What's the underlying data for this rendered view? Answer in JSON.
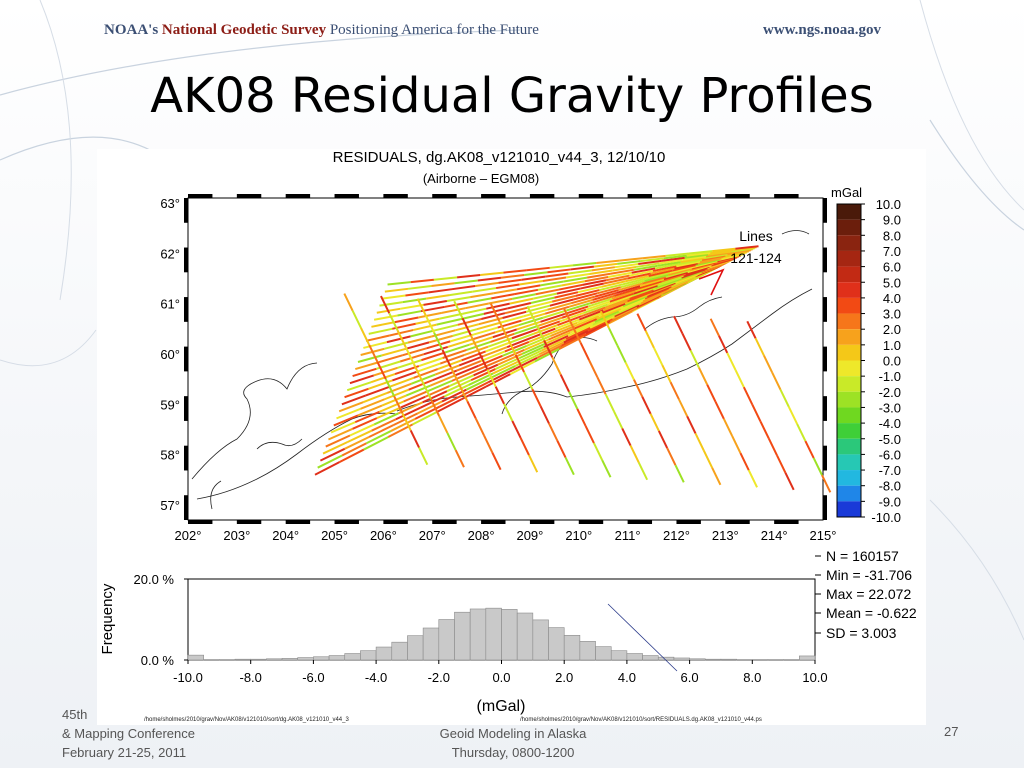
{
  "header": {
    "org": "NOAA's",
    "agency": "National Geodetic Survey",
    "tagline": "Positioning America for the Future",
    "url": "www.ngs.noaa.gov"
  },
  "slide": {
    "title": "AK08 Residual Gravity Profiles",
    "page_number": "27"
  },
  "footer": {
    "left_line1": "45th",
    "left_line2": "& Mapping Conference",
    "left_line3": "February 21-25, 2011",
    "center_line1": "Geoid Modeling in Alaska",
    "center_line2": "Thursday, 0800-1200"
  },
  "figure": {
    "path_left": "/home/sholmes/2010/grav/Nov/AK08/v121010/sort/dg.AK08_v121010_v44_3",
    "path_right": "/home/sholmes/2010/grav/Nov/AK08/v121010/sort/RESIDUALS.dg.AK08_v121010_v44.ps"
  },
  "chart_data": [
    {
      "type": "map",
      "title": "RESIDUALS, dg.AK08_v121010_v44_3, 12/10/10",
      "subtitle": "(Airborne – EGM08)",
      "xlabel": "",
      "ylabel": "",
      "x_ticks": [
        "202°",
        "203°",
        "204°",
        "205°",
        "206°",
        "207°",
        "208°",
        "209°",
        "210°",
        "211°",
        "212°",
        "213°",
        "214°",
        "215°"
      ],
      "y_ticks": [
        "57°",
        "58°",
        "59°",
        "60°",
        "61°",
        "62°",
        "63°"
      ],
      "xlim": [
        202,
        215
      ],
      "ylim": [
        56.7,
        63.1
      ],
      "annotation": "Lines\n121-124",
      "annotation_lines": [
        "Lines",
        "121-124"
      ],
      "colorbar": {
        "unit": "mGal",
        "labels": [
          "10.0",
          "9.0",
          "8.0",
          "7.0",
          "6.0",
          "5.0",
          "4.0",
          "3.0",
          "2.0",
          "1.0",
          "0.0",
          "-1.0",
          "-2.0",
          "-3.0",
          "-4.0",
          "-5.0",
          "-6.0",
          "-7.0",
          "-8.0",
          "-9.0",
          "-10.0"
        ],
        "colors": [
          "#4a1a0a",
          "#6b1e0c",
          "#8a2410",
          "#a52612",
          "#c22a14",
          "#e0301a",
          "#f24a14",
          "#f6761a",
          "#f7a21c",
          "#f4c818",
          "#eee82a",
          "#c9ea28",
          "#9de225",
          "#6fd820",
          "#3fcf38",
          "#2bc87a",
          "#26c8b4",
          "#22b8e0",
          "#1f86e8",
          "#1a3ad8"
        ]
      }
    },
    {
      "type": "bar",
      "title": "",
      "xlabel": "(mGal)",
      "ylabel": "Frequency",
      "x_ticks": [
        "-10.0",
        "-8.0",
        "-6.0",
        "-4.0",
        "-2.0",
        "0.0",
        "2.0",
        "4.0",
        "6.0",
        "8.0",
        "10.0"
      ],
      "y_ticks": [
        "0.0 %",
        "20.0 %"
      ],
      "xlim": [
        -10,
        10
      ],
      "ylim": [
        0,
        20
      ],
      "bin_width": 0.5,
      "bins": [
        -10.0,
        -9.5,
        -9.0,
        -8.5,
        -8.0,
        -7.5,
        -7.0,
        -6.5,
        -6.0,
        -5.5,
        -5.0,
        -4.5,
        -4.0,
        -3.5,
        -3.0,
        -2.5,
        -2.0,
        -1.5,
        -1.0,
        -0.5,
        0.0,
        0.5,
        1.0,
        1.5,
        2.0,
        2.5,
        3.0,
        3.5,
        4.0,
        4.5,
        5.0,
        5.5,
        6.0,
        6.5,
        7.0,
        7.5,
        8.0,
        8.5,
        9.0,
        9.5
      ],
      "values": [
        1.2,
        0.1,
        0.1,
        0.2,
        0.2,
        0.3,
        0.4,
        0.6,
        0.8,
        1.1,
        1.6,
        2.3,
        3.2,
        4.4,
        6.0,
        7.9,
        10.0,
        11.8,
        12.6,
        12.8,
        12.5,
        11.6,
        9.9,
        8.0,
        6.1,
        4.6,
        3.3,
        2.3,
        1.6,
        1.1,
        0.7,
        0.5,
        0.3,
        0.2,
        0.2,
        0.1,
        0.1,
        0.1,
        0.1,
        1.0
      ],
      "stats": {
        "N": "160157",
        "Min": "-31.706",
        "Max": "22.072",
        "Mean": "-0.622",
        "SD": "3.003"
      },
      "stats_lines": [
        "N =  160157",
        "Min = -31.706",
        "Max = 22.072",
        "Mean = -0.622",
        "SD = 3.003"
      ]
    }
  ]
}
